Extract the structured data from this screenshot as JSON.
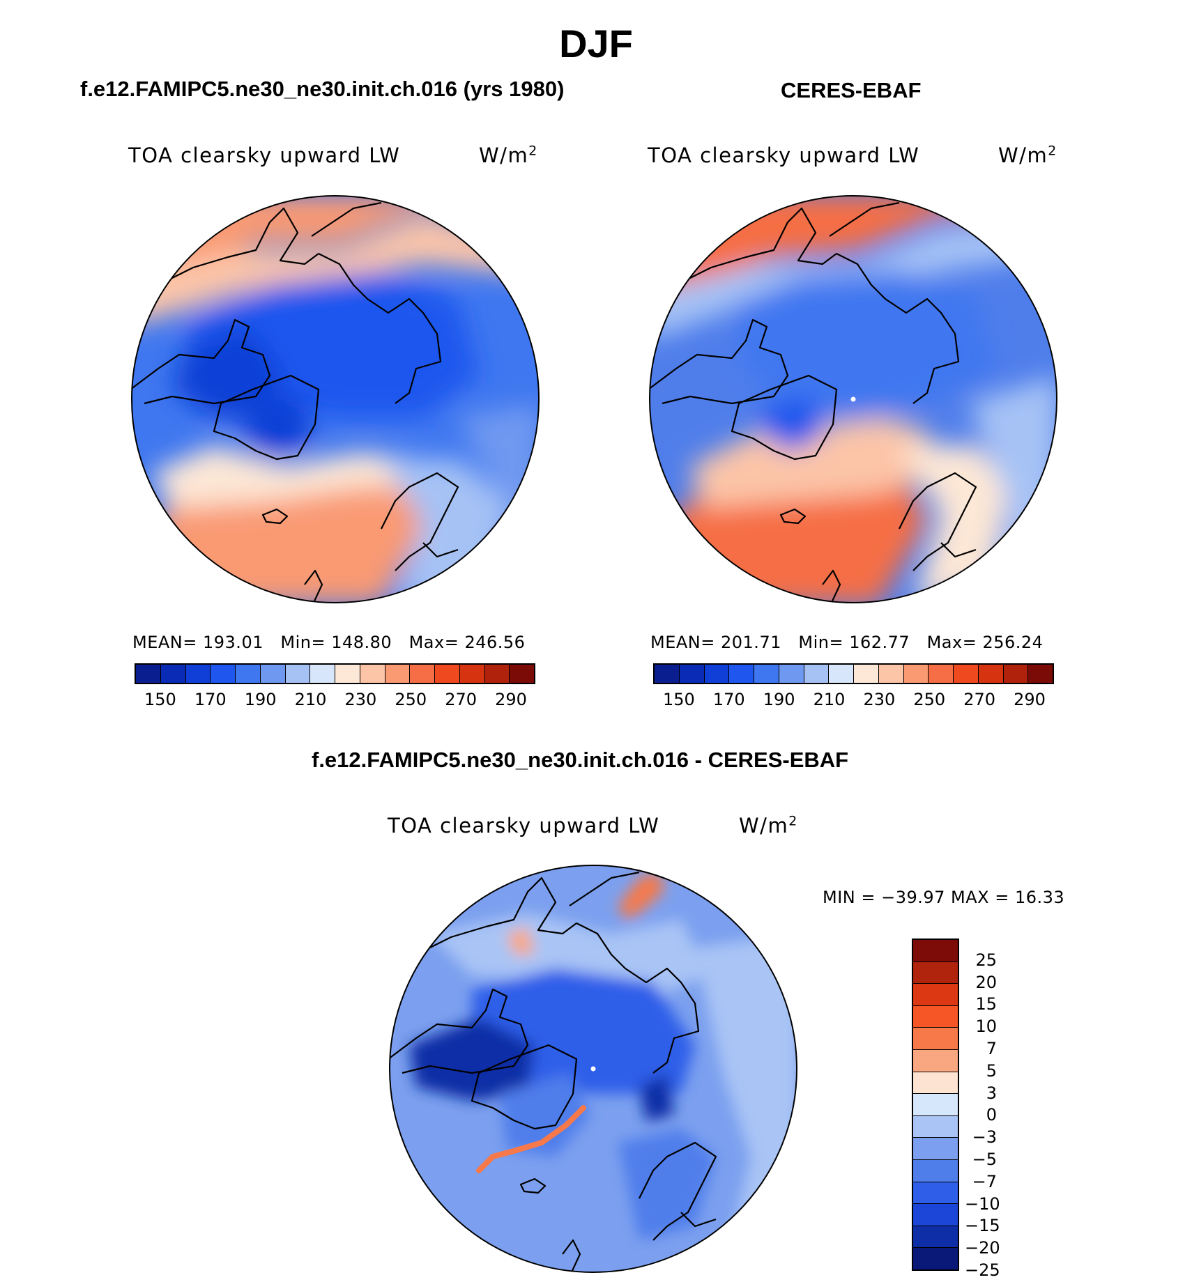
{
  "title": "DJF",
  "panels": [
    {
      "id": "model",
      "case_title": "f.e12.FAMIPC5.ne30_ne30.init.ch.016 (yrs 1980)",
      "variable": "TOA clearsky upward LW",
      "units_base": "W/m",
      "units_exp": "2",
      "stats": {
        "mean_label": "MEAN=",
        "mean": "193.01",
        "min_label": "Min=",
        "min": "148.80",
        "max_label": "Max=",
        "max": "246.56"
      }
    },
    {
      "id": "obs",
      "case_title": "CERES-EBAF",
      "variable": "TOA clearsky upward LW",
      "units_base": "W/m",
      "units_exp": "2",
      "stats": {
        "mean_label": "MEAN=",
        "mean": "201.71",
        "min_label": "Min=",
        "min": "162.77",
        "max_label": "Max=",
        "max": "256.24"
      }
    }
  ],
  "diff": {
    "case_title": "f.e12.FAMIPC5.ne30_ne30.init.ch.016 - CERES-EBAF",
    "variable": "TOA clearsky upward LW",
    "units_base": "W/m",
    "units_exp": "2",
    "minmax_text": "MIN = −39.97 MAX =   16.33"
  },
  "colorbar_abs": {
    "colors": [
      "#0b1e8f",
      "#0a2bb5",
      "#0f3fd6",
      "#1f57ee",
      "#3f77f0",
      "#6f99f0",
      "#a6c2f5",
      "#d8e6fb",
      "#fde7d6",
      "#fcc5a8",
      "#f99a73",
      "#f66e45",
      "#ef4a1f",
      "#d63411",
      "#b0220b",
      "#7a0b06"
    ],
    "tick_labels": [
      "150",
      "170",
      "190",
      "210",
      "230",
      "250",
      "270",
      "290"
    ]
  },
  "colorbar_diff": {
    "colors": [
      "#7d0b07",
      "#b0230c",
      "#dc3813",
      "#f65525",
      "#f7794a",
      "#f9a780",
      "#fde4d2",
      "#d6e6fb",
      "#a9c4f5",
      "#7ca0ef",
      "#4f7eeb",
      "#2f5fe9",
      "#1b46d8",
      "#0d2ea6",
      "#0a1877"
    ],
    "tick_labels": [
      "25",
      "20",
      "15",
      "10",
      "7",
      "5",
      "3",
      "0",
      "−3",
      "−5",
      "−7",
      "−10",
      "−15",
      "−20",
      "−25"
    ]
  },
  "map_fields": {
    "model": {
      "relative_values": {
        "arctic_ocean": 175,
        "canadian_archipelago": 158,
        "greenland": 152,
        "north_atlantic": 240,
        "north_pacific": 235,
        "siberia": 178,
        "scandinavia": 205
      }
    },
    "obs": {
      "relative_values": {
        "arctic_ocean": 185,
        "canadian_archipelago": 172,
        "greenland": 168,
        "north_atlantic": 250,
        "north_pacific": 242,
        "siberia": 190,
        "scandinavia": 215
      }
    },
    "diff": {
      "relative_values": {
        "arctic_ocean": -12,
        "canadian_archipelago": -22,
        "greenland": -14,
        "greenland_coast": 7,
        "north_atlantic": -6,
        "north_pacific": -7,
        "chukotka": 5
      }
    }
  }
}
